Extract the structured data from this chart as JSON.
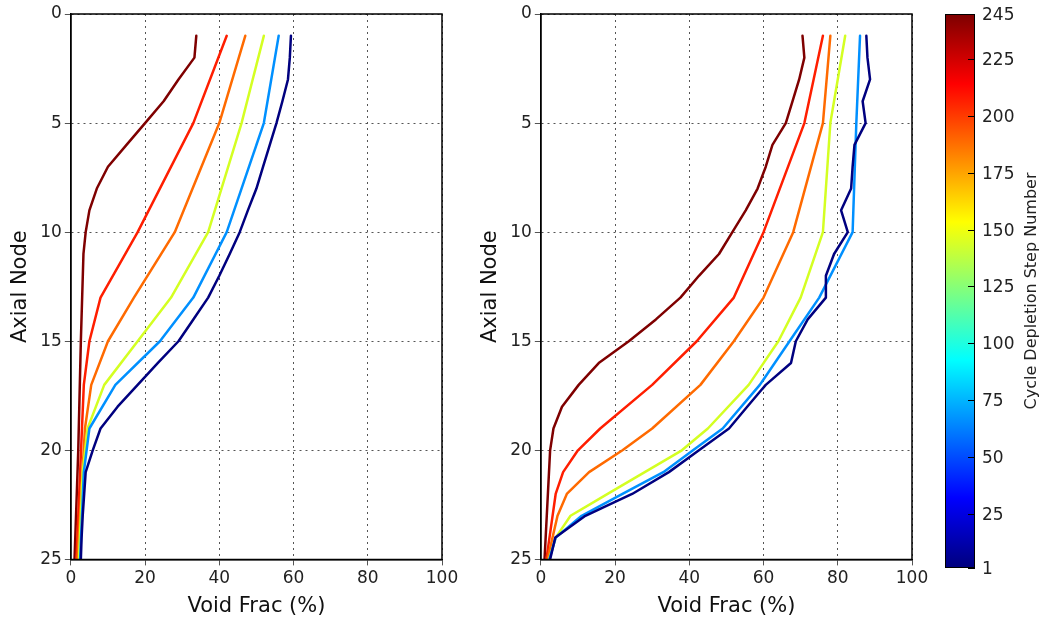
{
  "chart_data": [
    {
      "type": "line",
      "xlabel": "Void Frac (%)",
      "ylabel": "Axial Node",
      "xlim": [
        0,
        100
      ],
      "xticks": [
        0,
        20,
        40,
        60,
        80,
        100
      ],
      "ylim": [
        25,
        0
      ],
      "yticks": [
        0,
        5,
        10,
        15,
        20,
        25
      ],
      "grid": true,
      "series": [
        {
          "color": "#00007f",
          "x": [
            59.3,
            59,
            58.5,
            57,
            55.4,
            53.6,
            51.8,
            50,
            47.7,
            45.5,
            42.8,
            40,
            37,
            33,
            29,
            23.4,
            18,
            12.6,
            8,
            5.9,
            4,
            3.6,
            3.2,
            2.9,
            2.7
          ],
          "values": [
            1,
            2,
            3,
            4,
            5,
            6,
            7,
            8,
            9,
            10,
            11,
            12,
            13,
            14,
            15,
            16,
            17,
            18,
            19,
            20,
            21,
            22,
            23,
            24,
            25
          ]
        },
        {
          "color": "#0090ff",
          "x": [
            56,
            52,
            42,
            33,
            24,
            12,
            5,
            3.5,
            2.5
          ],
          "values": [
            1,
            5,
            10,
            13,
            15,
            17,
            19,
            21,
            25
          ]
        },
        {
          "color": "#d4ff22",
          "x": [
            52,
            46,
            37,
            27,
            18,
            9,
            4.5,
            3.2,
            2.2
          ],
          "values": [
            1,
            5,
            10,
            13,
            15,
            17,
            19,
            21,
            25
          ]
        },
        {
          "color": "#ff6a00",
          "x": [
            47,
            40,
            28,
            17,
            10,
            5.5,
            3.8,
            1.8
          ],
          "values": [
            1,
            5,
            10,
            13,
            15,
            17,
            19,
            25
          ]
        },
        {
          "color": "#ff1e00",
          "x": [
            42,
            33,
            18,
            8,
            5,
            3.5,
            1.5
          ],
          "values": [
            1,
            5,
            10,
            13,
            15,
            17,
            25
          ]
        },
        {
          "color": "#7f0000",
          "x": [
            33.8,
            33.3,
            29,
            25,
            20,
            15,
            10,
            7,
            5,
            4,
            3.4,
            2.7,
            2,
            1
          ],
          "values": [
            1,
            2,
            3,
            4,
            5,
            6,
            7,
            8,
            9,
            10,
            11,
            15,
            20,
            25
          ]
        }
      ]
    },
    {
      "type": "line",
      "xlabel": "Void Frac (%)",
      "ylabel": "Axial Node",
      "xlim": [
        0,
        100
      ],
      "xticks": [
        0,
        20,
        40,
        60,
        80,
        100
      ],
      "ylim": [
        25,
        0
      ],
      "yticks": [
        0,
        5,
        10,
        15,
        20,
        25
      ],
      "grid": true,
      "clabel": "Cycle Depletion Step Number",
      "clim": [
        1,
        245
      ],
      "cticks": [
        1,
        25,
        50,
        75,
        100,
        125,
        150,
        175,
        200,
        225,
        245
      ],
      "series": [
        {
          "color": "#00007f",
          "x": [
            87.7,
            88,
            88.7,
            86.7,
            87.5,
            84.5,
            84,
            83.6,
            80.9,
            82.7,
            79,
            76.8,
            76.8,
            71.9,
            68.7,
            67.4,
            60.6,
            55.6,
            50.7,
            42.6,
            34.5,
            24.6,
            12,
            3.9,
            2.5
          ],
          "values": [
            1,
            2,
            3,
            4,
            5,
            6,
            7,
            8,
            9,
            10,
            11,
            12,
            13,
            14,
            15,
            16,
            17,
            18,
            19,
            20,
            21,
            22,
            23,
            24,
            25
          ]
        },
        {
          "color": "#0090ff",
          "x": [
            86,
            85,
            84,
            75,
            67,
            59,
            49,
            41,
            33,
            22,
            11,
            4,
            2.3
          ],
          "values": [
            1,
            5,
            10,
            13,
            15,
            17,
            19,
            20,
            21,
            22,
            23,
            24,
            25
          ]
        },
        {
          "color": "#d4ff22",
          "x": [
            82,
            78,
            76,
            70,
            64,
            56,
            45,
            38,
            28,
            18,
            8,
            4,
            2.2
          ],
          "values": [
            1,
            5,
            10,
            13,
            15,
            17,
            19,
            20,
            21,
            22,
            23,
            24,
            25
          ]
        },
        {
          "color": "#ff6a00",
          "x": [
            78,
            76,
            68,
            60,
            52,
            43,
            30,
            22,
            13,
            7,
            4.5,
            1.8
          ],
          "values": [
            1,
            5,
            10,
            13,
            15,
            17,
            19,
            20,
            21,
            22,
            23,
            25
          ]
        },
        {
          "color": "#ff1e00",
          "x": [
            76,
            71,
            60,
            52,
            42,
            30,
            16,
            10,
            6,
            4,
            1.5
          ],
          "values": [
            1,
            5,
            10,
            13,
            15,
            17,
            19,
            20,
            21,
            22,
            25
          ]
        },
        {
          "color": "#7f0000",
          "x": [
            70.5,
            71,
            69.6,
            67.8,
            66,
            62.4,
            60.6,
            58.4,
            55.2,
            51.6,
            48,
            42.6,
            37.6,
            31,
            23.7,
            15.6,
            10.2,
            5.7,
            3.4,
            2.5,
            1
          ],
          "values": [
            1,
            2,
            3,
            4,
            5,
            6,
            7,
            8,
            9,
            10,
            11,
            12,
            13,
            14,
            15,
            16,
            17,
            18,
            19,
            20,
            25
          ]
        }
      ]
    }
  ]
}
